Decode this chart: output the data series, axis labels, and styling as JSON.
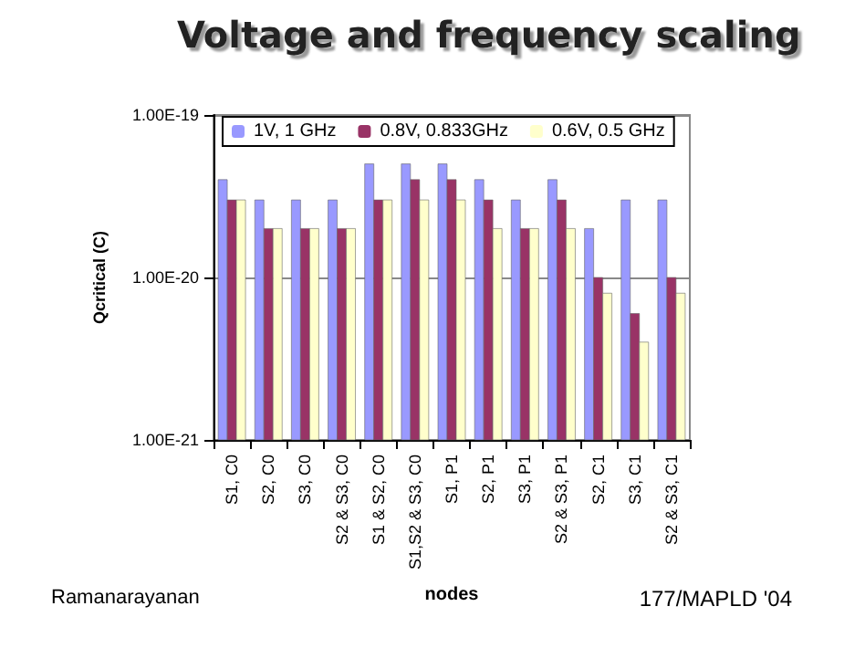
{
  "chart_data": {
    "type": "bar",
    "title": "Voltage and frequency scaling",
    "xlabel": "nodes",
    "ylabel": "Qcritical (C)",
    "categories": [
      "S1, C0",
      "S2, C0",
      "S3, C0",
      "S2 & S3, C0",
      "S1 & S2, C0",
      "S1,S2 & S3, C0",
      "S1, P1",
      "S2, P1",
      "S3, P1",
      "S2 & S3, P1",
      "S2, C1",
      "S3, C1",
      "S2 & S3, C1"
    ],
    "series": [
      {
        "name": "1V, 1 GHz",
        "color": "#9999ff",
        "values": [
          4e-20,
          3e-20,
          3e-20,
          3e-20,
          5e-20,
          5e-20,
          5e-20,
          4e-20,
          3e-20,
          4e-20,
          2e-20,
          3e-20,
          3e-20
        ]
      },
      {
        "name": "0.8V, 0.833GHz",
        "color": "#993366",
        "values": [
          3e-20,
          2e-20,
          2e-20,
          2e-20,
          3e-20,
          4e-20,
          4e-20,
          3e-20,
          2e-20,
          3e-20,
          1e-20,
          6e-21,
          1e-20
        ]
      },
      {
        "name": "0.6V, 0.5 GHz",
        "color": "#ffffcc",
        "values": [
          3e-20,
          2e-20,
          2e-20,
          2e-20,
          3e-20,
          3e-20,
          3e-20,
          2e-20,
          2e-20,
          2e-20,
          8e-21,
          4e-21,
          8e-21
        ]
      }
    ],
    "log": true,
    "ylim": [
      1e-21,
      1e-19
    ],
    "yticks": [
      {
        "value": 1e-21,
        "label": "1.00E-21"
      },
      {
        "value": 1e-20,
        "label": "1.00E-20"
      },
      {
        "value": 1e-19,
        "label": "1.00E-19"
      }
    ],
    "grid": "y",
    "legend": "top",
    "annotations": [
      "Ramanarayanan",
      "177/MAPLD '04"
    ]
  }
}
